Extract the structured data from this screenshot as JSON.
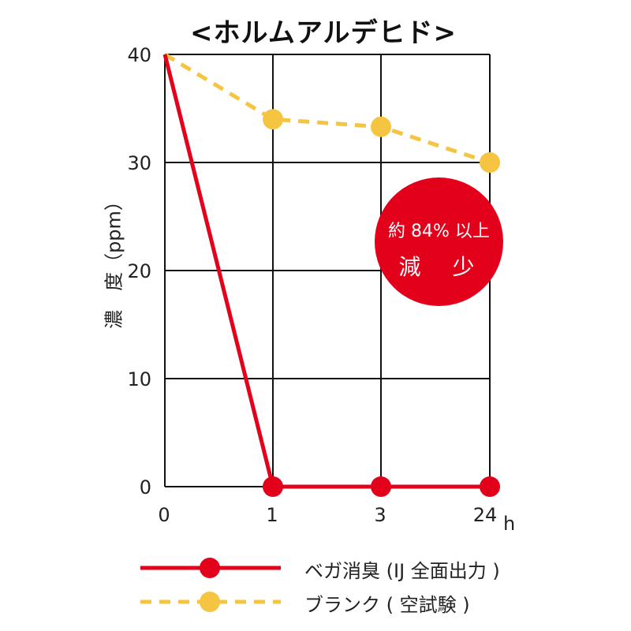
{
  "chart_data": {
    "type": "line",
    "title": "<ホルムアルデヒド>",
    "ylabel": "濃　度（ppm）",
    "xlabel": "h",
    "x_categories": [
      "0",
      "1",
      "3",
      "24"
    ],
    "ylim": [
      0,
      40
    ],
    "y_ticks": [
      "0",
      "10",
      "20",
      "30",
      "40"
    ],
    "grid": true,
    "series": [
      {
        "name": "ベガ消臭 (IJ 全面出力 )",
        "values": [
          40,
          0,
          0,
          0
        ],
        "color": "#e3001b",
        "style": "solid",
        "markers_from_index": 1
      },
      {
        "name": "ブランク ( 空試験 )",
        "values": [
          40,
          34,
          33.3,
          30
        ],
        "color": "#f5c542",
        "style": "dashed",
        "markers_from_index": 1
      }
    ],
    "annotation": {
      "line1": "約 84% 以上",
      "line2": "減　少",
      "color": "#e3001b"
    }
  }
}
